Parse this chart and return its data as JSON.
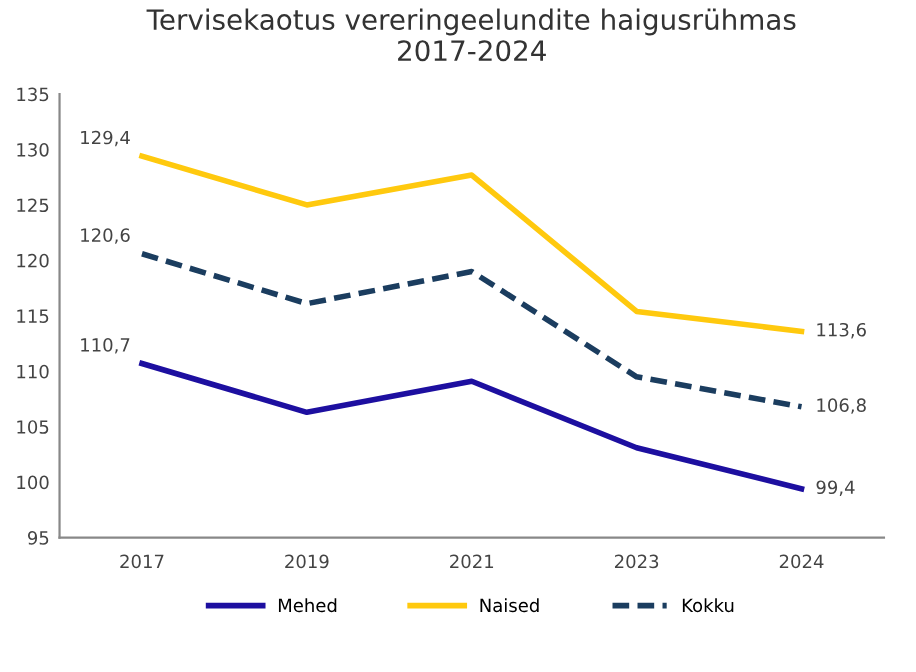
{
  "chart_data": {
    "type": "line",
    "title": "Tervisekaotus vereringeelundite haigusrühmas\n2017-2024",
    "categories": [
      "2017",
      "2019",
      "2021",
      "2023",
      "2024"
    ],
    "series": [
      {
        "name": "Mehed",
        "color": "#1d0fa0",
        "line_style": "solid",
        "values": [
          110.7,
          106.3,
          109.1,
          103.1,
          99.4
        ],
        "value_labels": [
          "110,7",
          null,
          null,
          null,
          "99,4"
        ]
      },
      {
        "name": "Naised",
        "color": "#ffc90e",
        "line_style": "solid",
        "values": [
          129.4,
          125.0,
          127.7,
          115.4,
          113.6
        ],
        "value_labels": [
          "129,4",
          null,
          null,
          null,
          "113,6"
        ]
      },
      {
        "name": "Kokku",
        "color": "#1b3d5f",
        "line_style": "dashed",
        "values": [
          120.6,
          116.1,
          119.0,
          109.5,
          106.8
        ],
        "value_labels": [
          "120,6",
          null,
          null,
          null,
          "106,8"
        ]
      }
    ],
    "ylim": [
      95,
      135
    ],
    "yticks": [
      95,
      100,
      105,
      110,
      115,
      120,
      125,
      130,
      135
    ],
    "grid": false,
    "legend": "bottom",
    "marker": "none"
  }
}
